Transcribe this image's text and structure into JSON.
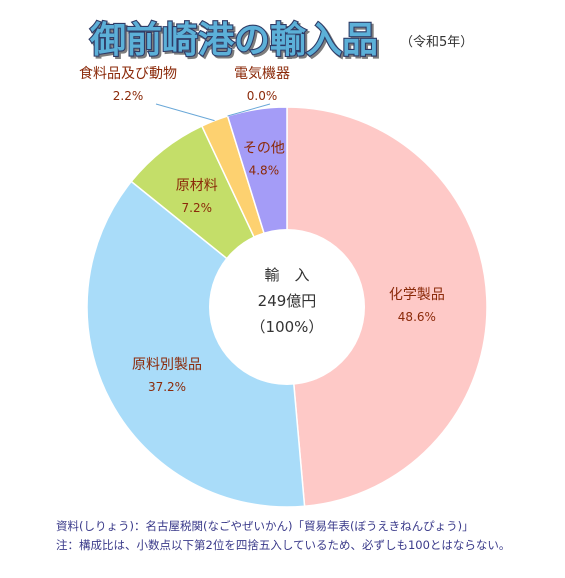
{
  "title": "御前崎港の輸入品",
  "subtitle": "（令和5年）",
  "notes": {
    "source": "資料(しりょう)：名古屋税関(なごやぜいかん)「貿易年表(ぼうえきねんぴょう)」",
    "footnote": "注：構成比は、小数点以下第2位を四捨五入しているため、必ずしも100とはならない。"
  },
  "colors": {
    "title_fill": "#5bb0d8",
    "label_text": "#8b2a0a",
    "center_text": "#333333"
  },
  "chart_data": {
    "type": "pie",
    "title": "御前崎港の輸入品",
    "subtitle": "（令和5年）",
    "center": {
      "line1": "輸　入",
      "line2": "249億円",
      "line3": "（100%）"
    },
    "slices": [
      {
        "name": "化学製品",
        "value": 48.6,
        "label": "48.6%",
        "color": "#fec9c7"
      },
      {
        "name": "原料別製品",
        "value": 37.2,
        "label": "37.2%",
        "color": "#a9dcf9"
      },
      {
        "name": "原材料",
        "value": 7.2,
        "label": "7.2%",
        "color": "#c4de69"
      },
      {
        "name": "食料品及び動物",
        "value": 2.2,
        "label": "2.2%",
        "color": "#fdd170"
      },
      {
        "name": "電気機器",
        "value": 0.0,
        "label": "0.0%",
        "color": "#bbbbbb"
      },
      {
        "name": "その他",
        "value": 4.8,
        "label": "4.8%",
        "color": "#a49cf7"
      }
    ]
  }
}
